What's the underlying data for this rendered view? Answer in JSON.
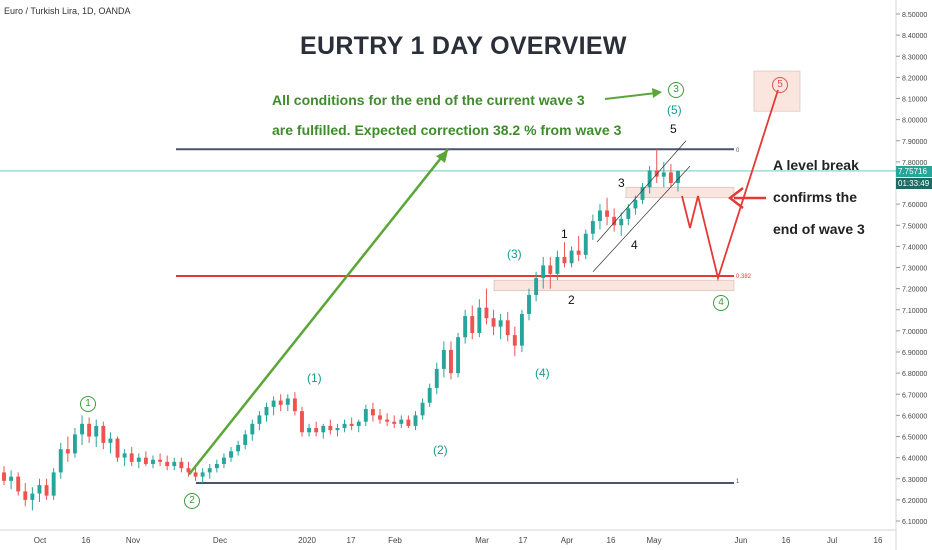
{
  "header": {
    "ticker": "Euro / Turkish Lira, 1D, OANDA",
    "title": "EURTRY 1 DAY OVERVIEW"
  },
  "notes": {
    "green_line1": "All conditions for the end of the current wave 3",
    "green_line2": "are fulfilled. Expected correction  38.2 % from wave 3",
    "black_line1": "A level break",
    "black_line2": "confirms the",
    "black_line3": "end of wave 3"
  },
  "wave_labels": {
    "p1": "(1)",
    "p2": "(2)",
    "p3": "(3)",
    "p4": "(4)",
    "p5": "(5)",
    "s1": "1",
    "s2": "2",
    "s3": "3",
    "s4": "4",
    "s5": "5",
    "c1": "1",
    "c2": "2",
    "c3": "3",
    "c4": "4",
    "c5": "5"
  },
  "levels": {
    "fib0": "0",
    "fib382": "0.382",
    "fib1": "1"
  },
  "price_tags": {
    "current": "7.75716",
    "countdown": "01:33:49"
  },
  "colors": {
    "up": "#26a69a",
    "down": "#ef5350",
    "green": "#3e8c2c",
    "red": "#e53935",
    "level": "#4d5270",
    "teal": "#179b8e"
  },
  "chart_data": {
    "type": "candlestick",
    "title": "EURTRY 1 DAY OVERVIEW",
    "ylim": [
      6.05,
      8.55
    ],
    "y_ticks": [
      "8.50000",
      "8.40000",
      "8.30000",
      "8.20000",
      "8.10000",
      "8.00000",
      "7.90000",
      "7.80000",
      "7.70000",
      "7.60000",
      "7.50000",
      "7.40000",
      "7.30000",
      "7.20000",
      "7.10000",
      "7.00000",
      "6.90000",
      "6.80000",
      "6.70000",
      "6.60000",
      "6.50000",
      "6.40000",
      "6.30000",
      "6.20000",
      "6.10000"
    ],
    "x_ticks": [
      "Oct",
      "16",
      "Nov",
      "Dec",
      "2020",
      "17",
      "Feb",
      "Mar",
      "17",
      "Apr",
      "16",
      "May",
      "Jun",
      "16",
      "Jul",
      "16"
    ],
    "fib_levels": [
      {
        "name": "0",
        "price": 7.86
      },
      {
        "name": "0.382",
        "price": 7.26
      },
      {
        "name": "1",
        "price": 6.28
      }
    ],
    "current_price": 7.75716,
    "candles": [
      [
        6.33,
        6.36,
        6.27,
        6.29
      ],
      [
        6.29,
        6.34,
        6.25,
        6.31
      ],
      [
        6.31,
        6.33,
        6.22,
        6.24
      ],
      [
        6.24,
        6.28,
        6.17,
        6.2
      ],
      [
        6.2,
        6.26,
        6.15,
        6.23
      ],
      [
        6.23,
        6.3,
        6.19,
        6.27
      ],
      [
        6.27,
        6.3,
        6.2,
        6.22
      ],
      [
        6.22,
        6.35,
        6.2,
        6.33
      ],
      [
        6.33,
        6.47,
        6.3,
        6.44
      ],
      [
        6.44,
        6.5,
        6.38,
        6.42
      ],
      [
        6.42,
        6.54,
        6.4,
        6.51
      ],
      [
        6.51,
        6.6,
        6.46,
        6.56
      ],
      [
        6.56,
        6.59,
        6.47,
        6.5
      ],
      [
        6.5,
        6.58,
        6.45,
        6.55
      ],
      [
        6.55,
        6.57,
        6.44,
        6.47
      ],
      [
        6.47,
        6.52,
        6.42,
        6.49
      ],
      [
        6.49,
        6.5,
        6.38,
        6.4
      ],
      [
        6.4,
        6.44,
        6.36,
        6.42
      ],
      [
        6.42,
        6.45,
        6.36,
        6.38
      ],
      [
        6.38,
        6.42,
        6.35,
        6.4
      ],
      [
        6.4,
        6.43,
        6.36,
        6.37
      ],
      [
        6.37,
        6.41,
        6.35,
        6.39
      ],
      [
        6.39,
        6.42,
        6.36,
        6.38
      ],
      [
        6.38,
        6.41,
        6.34,
        6.36
      ],
      [
        6.36,
        6.4,
        6.34,
        6.38
      ],
      [
        6.38,
        6.4,
        6.33,
        6.35
      ],
      [
        6.35,
        6.38,
        6.31,
        6.33
      ],
      [
        6.33,
        6.36,
        6.29,
        6.31
      ],
      [
        6.31,
        6.35,
        6.28,
        6.33
      ],
      [
        6.33,
        6.37,
        6.3,
        6.35
      ],
      [
        6.35,
        6.39,
        6.33,
        6.37
      ],
      [
        6.37,
        6.42,
        6.35,
        6.4
      ],
      [
        6.4,
        6.45,
        6.38,
        6.43
      ],
      [
        6.43,
        6.48,
        6.41,
        6.46
      ],
      [
        6.46,
        6.53,
        6.44,
        6.51
      ],
      [
        6.51,
        6.58,
        6.48,
        6.56
      ],
      [
        6.56,
        6.62,
        6.53,
        6.6
      ],
      [
        6.6,
        6.66,
        6.57,
        6.64
      ],
      [
        6.64,
        6.69,
        6.6,
        6.67
      ],
      [
        6.67,
        6.7,
        6.62,
        6.65
      ],
      [
        6.65,
        6.7,
        6.62,
        6.68
      ],
      [
        6.68,
        6.71,
        6.6,
        6.62
      ],
      [
        6.62,
        6.64,
        6.5,
        6.52
      ],
      [
        6.52,
        6.56,
        6.5,
        6.54
      ],
      [
        6.54,
        6.57,
        6.5,
        6.52
      ],
      [
        6.52,
        6.56,
        6.49,
        6.55
      ],
      [
        6.55,
        6.58,
        6.51,
        6.53
      ],
      [
        6.53,
        6.56,
        6.5,
        6.54
      ],
      [
        6.54,
        6.58,
        6.52,
        6.56
      ],
      [
        6.56,
        6.59,
        6.53,
        6.55
      ],
      [
        6.55,
        6.58,
        6.52,
        6.57
      ],
      [
        6.57,
        6.65,
        6.55,
        6.63
      ],
      [
        6.63,
        6.66,
        6.57,
        6.6
      ],
      [
        6.6,
        6.63,
        6.56,
        6.58
      ],
      [
        6.58,
        6.61,
        6.55,
        6.57
      ],
      [
        6.57,
        6.6,
        6.54,
        6.56
      ],
      [
        6.56,
        6.6,
        6.54,
        6.58
      ],
      [
        6.58,
        6.6,
        6.54,
        6.55
      ],
      [
        6.55,
        6.62,
        6.53,
        6.6
      ],
      [
        6.6,
        6.68,
        6.58,
        6.66
      ],
      [
        6.66,
        6.75,
        6.64,
        6.73
      ],
      [
        6.73,
        6.85,
        6.7,
        6.82
      ],
      [
        6.82,
        6.95,
        6.78,
        6.91
      ],
      [
        6.91,
        6.95,
        6.77,
        6.8
      ],
      [
        6.8,
        6.99,
        6.78,
        6.97
      ],
      [
        6.97,
        7.1,
        6.94,
        7.07
      ],
      [
        7.07,
        7.12,
        6.96,
        6.99
      ],
      [
        6.99,
        7.15,
        6.97,
        7.11
      ],
      [
        7.11,
        7.2,
        7.03,
        7.06
      ],
      [
        7.06,
        7.1,
        6.98,
        7.02
      ],
      [
        7.02,
        7.08,
        6.96,
        7.05
      ],
      [
        7.05,
        7.09,
        6.95,
        6.98
      ],
      [
        6.98,
        7.02,
        6.88,
        6.93
      ],
      [
        6.93,
        7.1,
        6.9,
        7.08
      ],
      [
        7.08,
        7.2,
        7.05,
        7.17
      ],
      [
        7.17,
        7.28,
        7.14,
        7.25
      ],
      [
        7.25,
        7.35,
        7.2,
        7.31
      ],
      [
        7.31,
        7.35,
        7.2,
        7.27
      ],
      [
        7.27,
        7.38,
        7.24,
        7.35
      ],
      [
        7.35,
        7.42,
        7.3,
        7.32
      ],
      [
        7.32,
        7.4,
        7.3,
        7.38
      ],
      [
        7.38,
        7.45,
        7.33,
        7.36
      ],
      [
        7.36,
        7.48,
        7.34,
        7.46
      ],
      [
        7.46,
        7.55,
        7.43,
        7.52
      ],
      [
        7.52,
        7.6,
        7.48,
        7.57
      ],
      [
        7.57,
        7.63,
        7.5,
        7.54
      ],
      [
        7.54,
        7.58,
        7.47,
        7.5
      ],
      [
        7.5,
        7.56,
        7.45,
        7.53
      ],
      [
        7.53,
        7.6,
        7.5,
        7.58
      ],
      [
        7.58,
        7.64,
        7.55,
        7.62
      ],
      [
        7.62,
        7.7,
        7.6,
        7.68
      ],
      [
        7.68,
        7.78,
        7.65,
        7.76
      ],
      [
        7.76,
        7.86,
        7.7,
        7.73
      ],
      [
        7.73,
        7.8,
        7.68,
        7.75
      ],
      [
        7.75,
        7.79,
        7.68,
        7.7
      ],
      [
        7.7,
        7.76,
        7.66,
        7.757
      ]
    ],
    "annotations": [
      "Expected correction 38.2 % from wave 3",
      "A level break confirms the end of wave 3"
    ]
  }
}
